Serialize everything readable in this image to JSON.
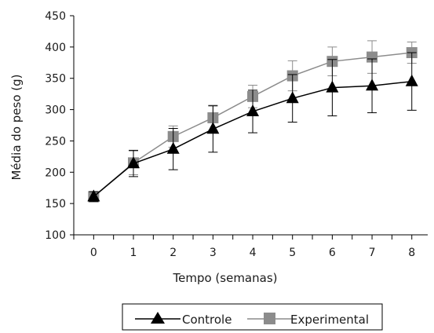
{
  "chart_data": {
    "type": "line",
    "title": "",
    "xlabel": "Tempo (semanas)",
    "ylabel": "Média do peso (g)",
    "x": [
      0,
      1,
      2,
      3,
      4,
      5,
      6,
      7,
      8
    ],
    "xlim": [
      -0.5,
      8.4
    ],
    "ylim": [
      100,
      450
    ],
    "yticks": [
      100,
      150,
      200,
      250,
      300,
      350,
      400,
      450
    ],
    "grid": false,
    "legend_position": "bottom",
    "series": [
      {
        "name": "Controle",
        "marker": "triangle",
        "color": "#000000",
        "values": [
          161,
          214,
          237,
          269,
          297,
          318,
          335,
          338,
          345
        ],
        "error": [
          8,
          21,
          33,
          37,
          34,
          38,
          45,
          43,
          46
        ]
      },
      {
        "name": "Experimental",
        "marker": "square",
        "color": "#8c8c8c",
        "values": [
          161,
          215,
          257,
          287,
          321,
          354,
          377,
          384,
          391
        ],
        "error": [
          8,
          19,
          17,
          20,
          18,
          24,
          23,
          26,
          17
        ]
      }
    ]
  }
}
